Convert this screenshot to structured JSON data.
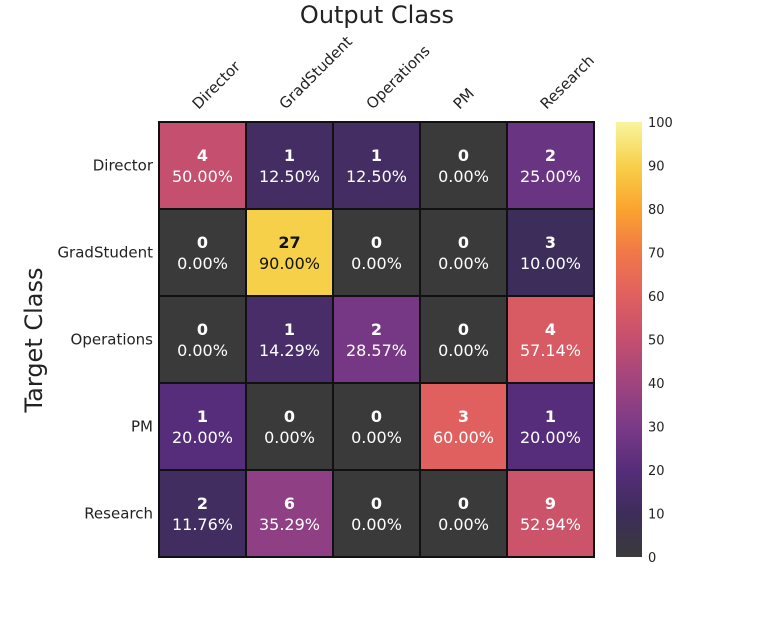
{
  "chart_data": {
    "type": "heatmap",
    "title": "Output Class",
    "xlabel": "Output Class",
    "ylabel": "Target Class",
    "x_categories": [
      "Director",
      "GradStudent",
      "Operations",
      "PM",
      "Research"
    ],
    "y_categories": [
      "Director",
      "GradStudent",
      "Operations",
      "PM",
      "Research"
    ],
    "counts": [
      [
        4,
        1,
        1,
        0,
        2
      ],
      [
        0,
        27,
        0,
        0,
        3
      ],
      [
        0,
        1,
        2,
        0,
        4
      ],
      [
        1,
        0,
        0,
        3,
        1
      ],
      [
        2,
        6,
        0,
        0,
        9
      ]
    ],
    "percentages": [
      [
        "50.00%",
        "12.50%",
        "12.50%",
        "0.00%",
        "25.00%"
      ],
      [
        "0.00%",
        "90.00%",
        "0.00%",
        "0.00%",
        "10.00%"
      ],
      [
        "0.00%",
        "14.29%",
        "28.57%",
        "0.00%",
        "57.14%"
      ],
      [
        "20.00%",
        "0.00%",
        "0.00%",
        "60.00%",
        "20.00%"
      ],
      [
        "11.76%",
        "35.29%",
        "0.00%",
        "0.00%",
        "52.94%"
      ]
    ],
    "colorbar": {
      "range": [
        0,
        100
      ],
      "ticks": [
        0,
        10,
        20,
        30,
        40,
        50,
        60,
        70,
        80,
        90,
        100
      ],
      "colormap": "inferno-like",
      "stops": [
        "#3a3a3a",
        "#3d2d5a",
        "#562d7a",
        "#7b3a87",
        "#a0447f",
        "#c44f6e",
        "#e06060",
        "#f07848",
        "#fba42e",
        "#f7d04a",
        "#f8f59f"
      ]
    }
  }
}
